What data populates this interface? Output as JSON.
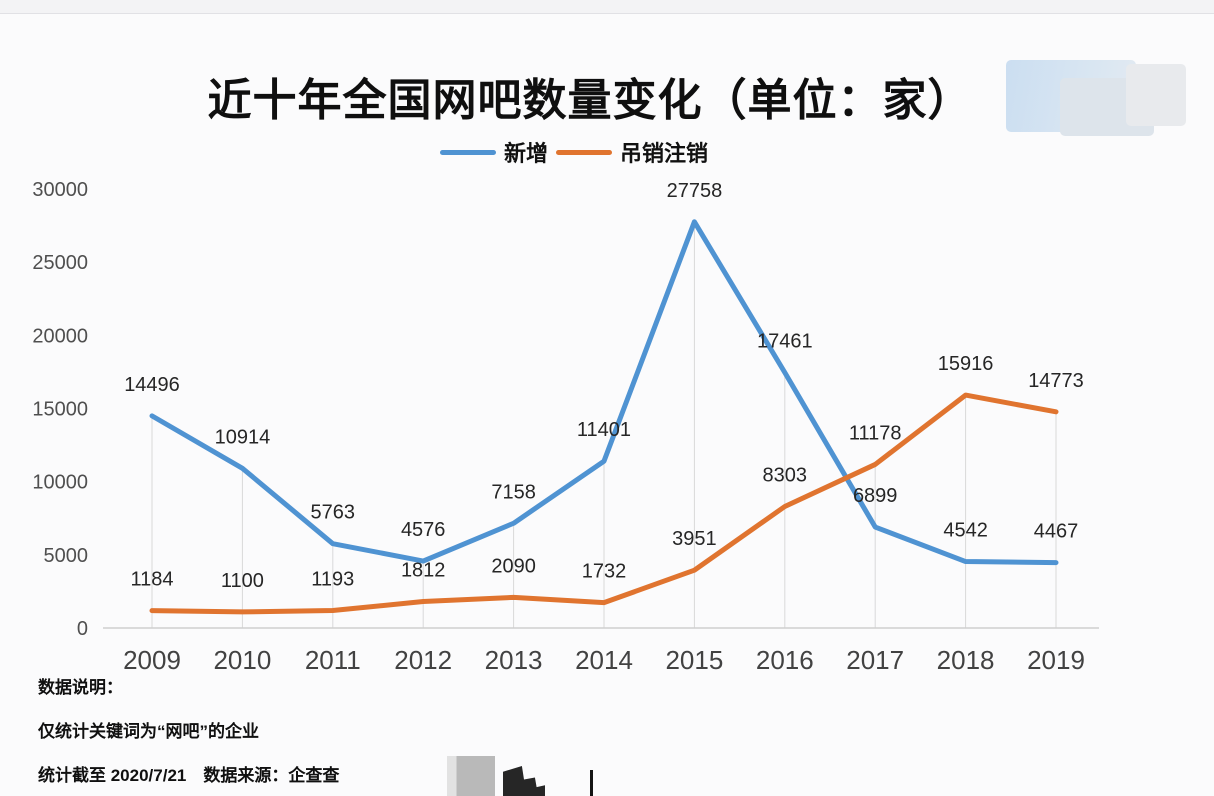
{
  "chart_data": {
    "type": "line",
    "title": "近十年全国网吧数量变化（单位：家）",
    "categories": [
      "2009",
      "2010",
      "2011",
      "2012",
      "2013",
      "2014",
      "2015",
      "2016",
      "2017",
      "2018",
      "2019"
    ],
    "series": [
      {
        "name": "新增",
        "color": "#4f93d2",
        "values": [
          14496,
          10914,
          5763,
          4576,
          7158,
          11401,
          27758,
          17461,
          6899,
          4542,
          4467
        ]
      },
      {
        "name": "吊销注销",
        "color": "#e0742f",
        "values": [
          1184,
          1100,
          1193,
          1812,
          2090,
          1732,
          3951,
          8303,
          11178,
          15916,
          14773
        ]
      }
    ],
    "xlabel": "",
    "ylabel": "",
    "ylim": [
      0,
      30000
    ],
    "yticks": [
      0,
      5000,
      10000,
      15000,
      20000,
      25000,
      30000
    ],
    "legend_position": "top-center",
    "grid": "vertical-drop-lines",
    "data_labels": true,
    "axis_color": "#cfcfcf",
    "dropline_color": "#d9d9d9"
  },
  "notes": {
    "heading": "数据说明：",
    "line1": "仅统计关键词为“网吧”的企业",
    "line2": "统计截至 2020/7/21　数据来源：企查查"
  }
}
